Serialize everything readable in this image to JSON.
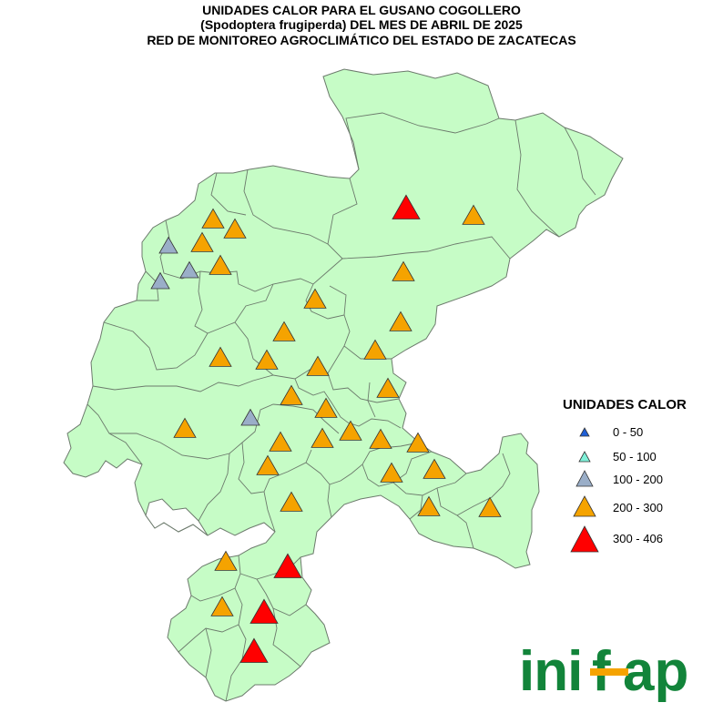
{
  "title": {
    "line1": "UNIDADES CALOR PARA EL GUSANO COGOLLERO",
    "line2": "(Spodoptera frugiperda) DEL MES DE ABRIL DE 2025",
    "line3": "RED DE MONITOREO AGROCLIMÁTICO DEL ESTADO DE ZACATECAS"
  },
  "legend": {
    "title": "UNIDADES CALOR",
    "items": [
      {
        "label": "0 - 50",
        "color": "#1f5fd6"
      },
      {
        "label": "50 - 100",
        "color": "#7ff0d8"
      },
      {
        "label": "100 - 200",
        "color": "#9aaec8"
      },
      {
        "label": "200 - 300",
        "color": "#f5a300"
      },
      {
        "label": "300 - 406",
        "color": "#ff0000"
      }
    ]
  },
  "colors": {
    "land": "#c6fcc6",
    "border": "#6c7a6c",
    "logo_green": "#12843a",
    "logo_orange": "#f5a300"
  },
  "logo": {
    "text": "inifap"
  }
}
